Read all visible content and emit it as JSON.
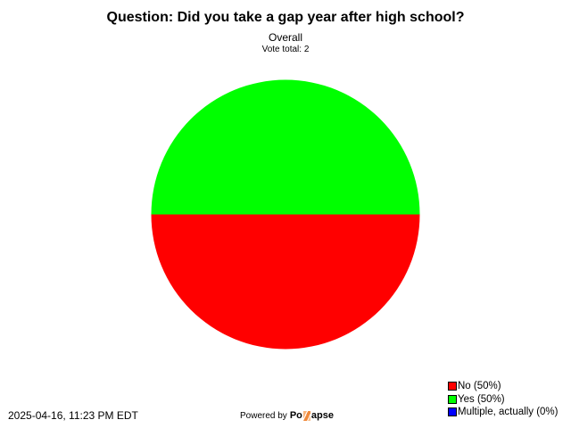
{
  "chart_data": {
    "type": "pie",
    "title": "Question: Did you take a gap year after high school?",
    "subtitle": "Overall",
    "vote_total_label": "Vote total: 2",
    "slices": [
      {
        "label": "No",
        "percent": 50,
        "color": "#ff0000",
        "legend": "No (50%)"
      },
      {
        "label": "Yes",
        "percent": 50,
        "color": "#00ff00",
        "legend": "Yes (50%)"
      },
      {
        "label": "Multiple, actually",
        "percent": 0,
        "color": "#0000ff",
        "legend": "Multiple, actually (0%)"
      }
    ],
    "legend_placement": "bottom-right"
  },
  "footer": {
    "timestamp": "2025-04-16, 11:23 PM EDT",
    "powered_by": "Powered by",
    "logo_left": "Po",
    "logo_right": "apse"
  }
}
